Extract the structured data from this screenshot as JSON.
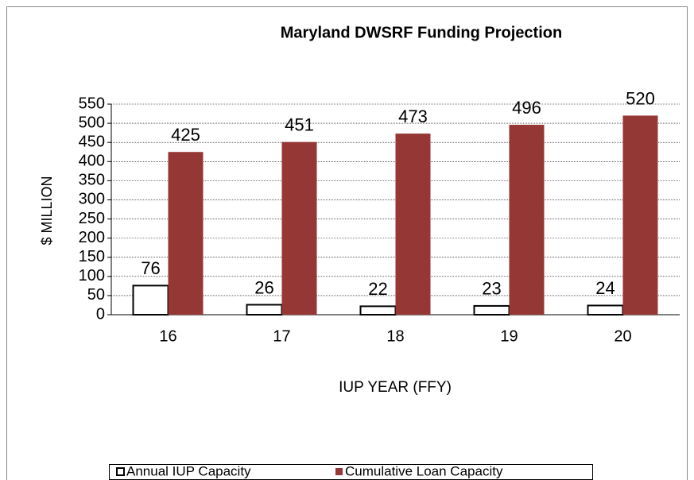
{
  "chart_data": {
    "type": "bar",
    "title": "Maryland DWSRF Funding Projection",
    "x_label": "IUP YEAR (FFY)",
    "y_label": "$ MILLION",
    "categories": [
      "16",
      "17",
      "18",
      "19",
      "20"
    ],
    "series": [
      {
        "name": "Annual IUP Capacity",
        "color": "#ffffff",
        "values": [
          76,
          26,
          22,
          23,
          24
        ]
      },
      {
        "name": "Cumulative Loan Capacity",
        "color": "#953735",
        "values": [
          425,
          451,
          473,
          496,
          520
        ]
      }
    ],
    "ylim": [
      0,
      550
    ],
    "yticks": [
      0,
      50,
      100,
      150,
      200,
      250,
      300,
      350,
      400,
      450,
      500,
      550
    ],
    "grid": true,
    "legend": "bottom"
  }
}
